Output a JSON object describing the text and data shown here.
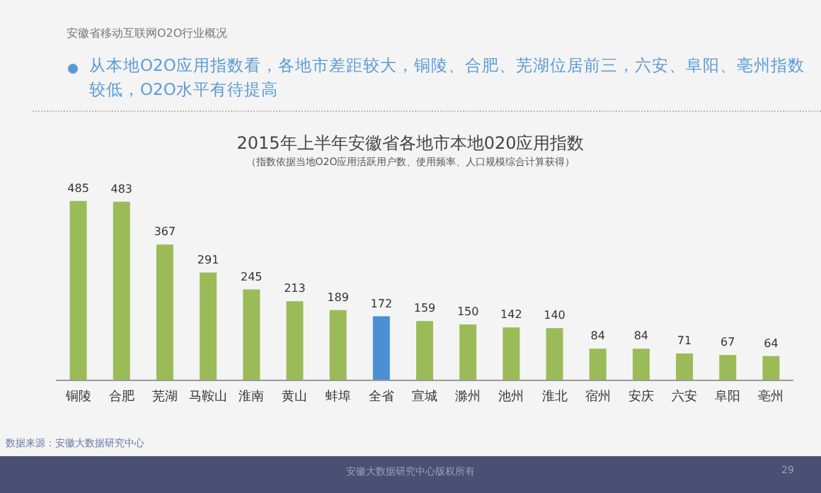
{
  "chart_data": {
    "type": "bar",
    "title": "2015年上半年安徽省各地市本地020应用指数",
    "subtitle": "（指数依据当地O2O应用活跃用户数、使用频率、人口规模综合计算获得）",
    "categories": [
      "铜陵",
      "合肥",
      "芜湖",
      "马鞍山",
      "淮南",
      "黄山",
      "蚌埠",
      "全省",
      "宣城",
      "滁州",
      "池州",
      "淮北",
      "宿州",
      "安庆",
      "六安",
      "阜阳",
      "亳州"
    ],
    "values": [
      485,
      483,
      367,
      291,
      245,
      213,
      189,
      172,
      159,
      150,
      142,
      140,
      84,
      84,
      71,
      67,
      64
    ],
    "colors": [
      "#9bbb59",
      "#9bbb59",
      "#9bbb59",
      "#9bbb59",
      "#9bbb59",
      "#9bbb59",
      "#9bbb59",
      "#4a8fd4",
      "#9bbb59",
      "#9bbb59",
      "#9bbb59",
      "#9bbb59",
      "#9bbb59",
      "#9bbb59",
      "#9bbb59",
      "#9bbb59",
      "#9bbb59"
    ],
    "data_labels": true,
    "annotations": [
      "安徽省移动互联网O2O行业概况",
      "从本地O2O应用指数看，各地市差距较大，铜陵、合肥、芜湖位居前三，六安、阜阳、亳州指数较低，O2O水平有待提高",
      "数据来源：安徽大数据研究中心",
      "安徽大数据研究中心版权所有",
      "29"
    ]
  }
}
